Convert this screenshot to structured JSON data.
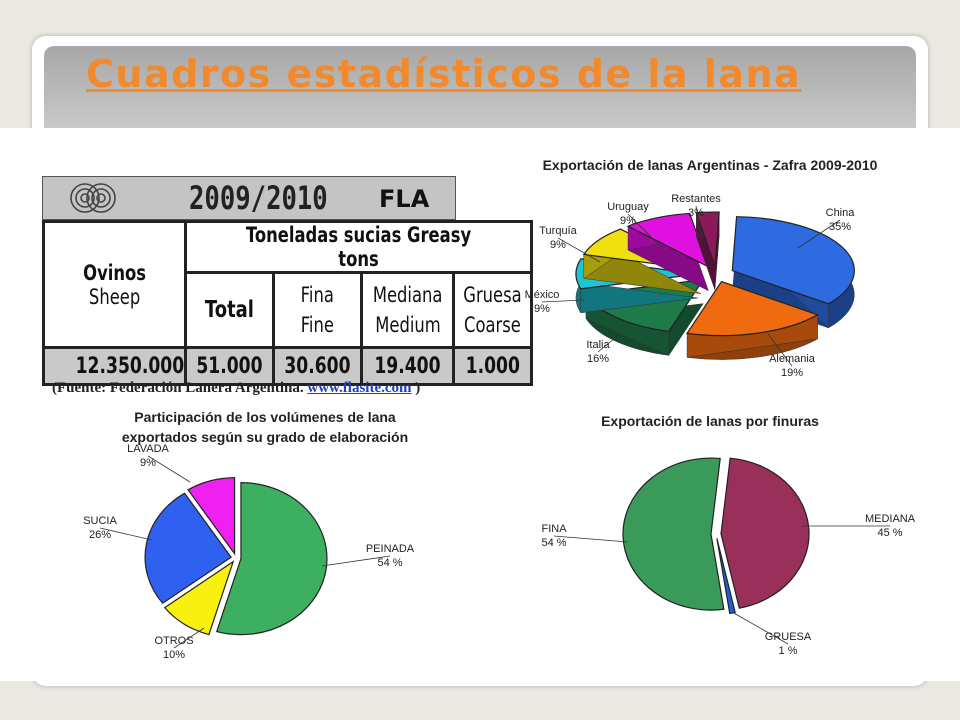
{
  "slide": {
    "title": "Cuadros estadísticos de la lana"
  },
  "fla_table": {
    "year": "2009/2010",
    "org": "FLA",
    "species": "Ovinos",
    "species_en": "Sheep",
    "group_header": "Toneladas sucias Greasy tons",
    "columns": [
      {
        "es": "Total",
        "en": ""
      },
      {
        "es": "Fina",
        "en": "Fine"
      },
      {
        "es": "Mediana",
        "en": "Medium"
      },
      {
        "es": "Gruesa",
        "en": "Coarse"
      }
    ],
    "values": {
      "sheep": "12.350.000",
      "total": "51.000",
      "fina": "30.600",
      "mediana": "19.400",
      "gruesa": "1.000"
    },
    "source_prefix": "(Fuente: Federación Lanera Argentina.",
    "source_link": "www.flasite.com",
    "source_suffix": ")"
  },
  "chart_data": [
    {
      "type": "pie",
      "title": "Exportación de lanas Argentinas - Zafra 2009-2010",
      "slices": [
        {
          "label": "China",
          "value": 35,
          "text": "35%",
          "color": "#2e6be0"
        },
        {
          "label": "Alemania",
          "value": 19,
          "text": "19%",
          "color": "#f06a10"
        },
        {
          "label": "Italia",
          "value": 16,
          "text": "16%",
          "color": "#1f7a4a"
        },
        {
          "label": "México",
          "value": 9,
          "text": "9%",
          "color": "#1ec4d4"
        },
        {
          "label": "Turquía",
          "value": 9,
          "text": "9%",
          "color": "#f0e010"
        },
        {
          "label": "Uruguay",
          "value": 9,
          "text": "9%",
          "color": "#e010e0"
        },
        {
          "label": "Restantes",
          "value": 3,
          "text": "3%",
          "color": "#8a1a5a"
        }
      ]
    },
    {
      "type": "pie",
      "title": "Participación de los volúmenes de lana exportados según su grado de elaboración",
      "title_lines": [
        "Participación de los volúmenes de lana",
        "exportados según su grado de elaboración"
      ],
      "slices": [
        {
          "label": "PEINADA",
          "value": 54,
          "text": "54 %",
          "color": "#3cb060"
        },
        {
          "label": "OTROS",
          "value": 10,
          "text": "10%",
          "color": "#f8f010"
        },
        {
          "label": "SUCIA",
          "value": 26,
          "text": "26%",
          "color": "#3060f0"
        },
        {
          "label": "LAVADA",
          "value": 9,
          "text": "9%",
          "color": "#f020f0"
        }
      ]
    },
    {
      "type": "pie",
      "title": "Exportación de lanas por finuras",
      "slices": [
        {
          "label": "MEDIANA",
          "value": 45,
          "text": "45 %",
          "color": "#98305a"
        },
        {
          "label": "GRUESA",
          "value": 1,
          "text": "1 %",
          "color": "#2060d0"
        },
        {
          "label": "FINA",
          "value": 54,
          "text": "54 %",
          "color": "#3a9a5a"
        }
      ]
    }
  ]
}
